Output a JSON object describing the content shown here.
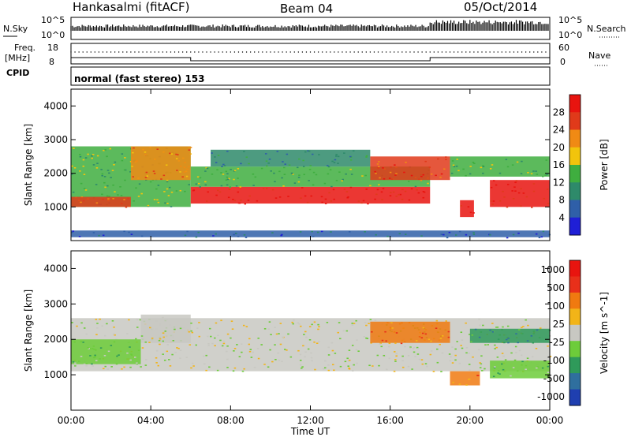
{
  "header": {
    "title": "Hankasalmi (fitACF)",
    "beam": "Beam 04",
    "date": "05/Oct/2014"
  },
  "left_labels": {
    "nsky": "N.Sky",
    "freq_line1": "Freq.",
    "freq_line2": "[MHz]",
    "cpid": "CPID"
  },
  "right_labels": {
    "nsearch": "N.Search",
    "nave": "Nave"
  },
  "strip_ticks": {
    "nsky_top": "10^5",
    "nsky_bottom": "10^0",
    "nsearch_top": "10^5",
    "nsearch_bottom": "10^0",
    "freq_top": "18",
    "freq_bottom": "8",
    "nave_top": "60",
    "nave_bottom": "0"
  },
  "cpid_text": "normal (fast stereo) 153",
  "chart_data": [
    {
      "type": "heatmap",
      "panel": "power",
      "ylabel": "Slant Range [km]",
      "ylim": [
        0,
        4500
      ],
      "yticks": [
        1000,
        2000,
        3000,
        4000
      ],
      "xlim_hours": [
        0,
        24
      ],
      "xticks_hours": [
        0,
        4,
        8,
        12,
        16,
        20,
        24
      ],
      "colorbar": {
        "label": "Power [dB]",
        "ticks": [
          "4",
          "8",
          "12",
          "16",
          "20",
          "24",
          "28"
        ],
        "colors": [
          "#1f1fd6",
          "#2f5fa8",
          "#2e8a6a",
          "#3fae3f",
          "#f2c40c",
          "#f08a14",
          "#e03a1a",
          "#e8140f"
        ]
      },
      "bands": [
        {
          "x0": 0.0,
          "x1": 6.0,
          "y0": 1000,
          "y1": 2800,
          "level": 3
        },
        {
          "x0": 0.0,
          "x1": 3.0,
          "y0": 1000,
          "y1": 1300,
          "level": 6
        },
        {
          "x0": 3.0,
          "x1": 6.0,
          "y0": 1800,
          "y1": 2800,
          "level": 5
        },
        {
          "x0": 6.0,
          "x1": 18.0,
          "y0": 1100,
          "y1": 1600,
          "level": 7
        },
        {
          "x0": 6.0,
          "x1": 18.0,
          "y0": 1600,
          "y1": 2200,
          "level": 3
        },
        {
          "x0": 7.0,
          "x1": 15.0,
          "y0": 2200,
          "y1": 2700,
          "level": 2
        },
        {
          "x0": 15.0,
          "x1": 19.0,
          "y0": 1800,
          "y1": 2500,
          "level": 6
        },
        {
          "x0": 19.0,
          "x1": 24.0,
          "y0": 1900,
          "y1": 2500,
          "level": 3
        },
        {
          "x0": 21.0,
          "x1": 24.0,
          "y0": 1000,
          "y1": 1800,
          "level": 7
        },
        {
          "x0": 19.5,
          "x1": 20.2,
          "y0": 700,
          "y1": 1200,
          "level": 7
        },
        {
          "x0": 0.0,
          "x1": 24.0,
          "y0": 100,
          "y1": 300,
          "level": 1
        }
      ]
    },
    {
      "type": "heatmap",
      "panel": "velocity",
      "ylabel": "Slant Range [km]",
      "ylim": [
        0,
        4500
      ],
      "yticks": [
        1000,
        2000,
        3000,
        4000
      ],
      "xlim_hours": [
        0,
        24
      ],
      "xticks_hours": [
        0,
        4,
        8,
        12,
        16,
        20,
        24
      ],
      "xtick_labels": [
        "00:00",
        "04:00",
        "08:00",
        "12:00",
        "16:00",
        "20:00",
        "00:00"
      ],
      "xlabel": "Time UT",
      "colorbar": {
        "label": "Velocity [m s^-1]",
        "ticks": [
          "1000",
          "500",
          "100",
          "25",
          "-25",
          "-100",
          "-500",
          "-1000"
        ],
        "colors": [
          "#1f3fb0",
          "#2f6f9e",
          "#2f9a5a",
          "#6dcc3a",
          "#c8c8c2",
          "#f2b418",
          "#f07a10",
          "#e8301a",
          "#e8140f"
        ]
      },
      "bands": [
        {
          "x0": 0.0,
          "x1": 24.0,
          "y0": 1100,
          "y1": 2600,
          "level": 4
        },
        {
          "x0": 0.0,
          "x1": 3.5,
          "y0": 1300,
          "y1": 2000,
          "level": 3
        },
        {
          "x0": 3.5,
          "x1": 6.0,
          "y0": 1900,
          "y1": 2700,
          "level": 4
        },
        {
          "x0": 15.0,
          "x1": 19.0,
          "y0": 1900,
          "y1": 2500,
          "level": 6
        },
        {
          "x0": 19.0,
          "x1": 20.5,
          "y0": 700,
          "y1": 1100,
          "level": 6
        },
        {
          "x0": 21.0,
          "x1": 24.0,
          "y0": 900,
          "y1": 1400,
          "level": 3
        },
        {
          "x0": 20.0,
          "x1": 24.0,
          "y0": 1900,
          "y1": 2300,
          "level": 2
        }
      ]
    }
  ]
}
